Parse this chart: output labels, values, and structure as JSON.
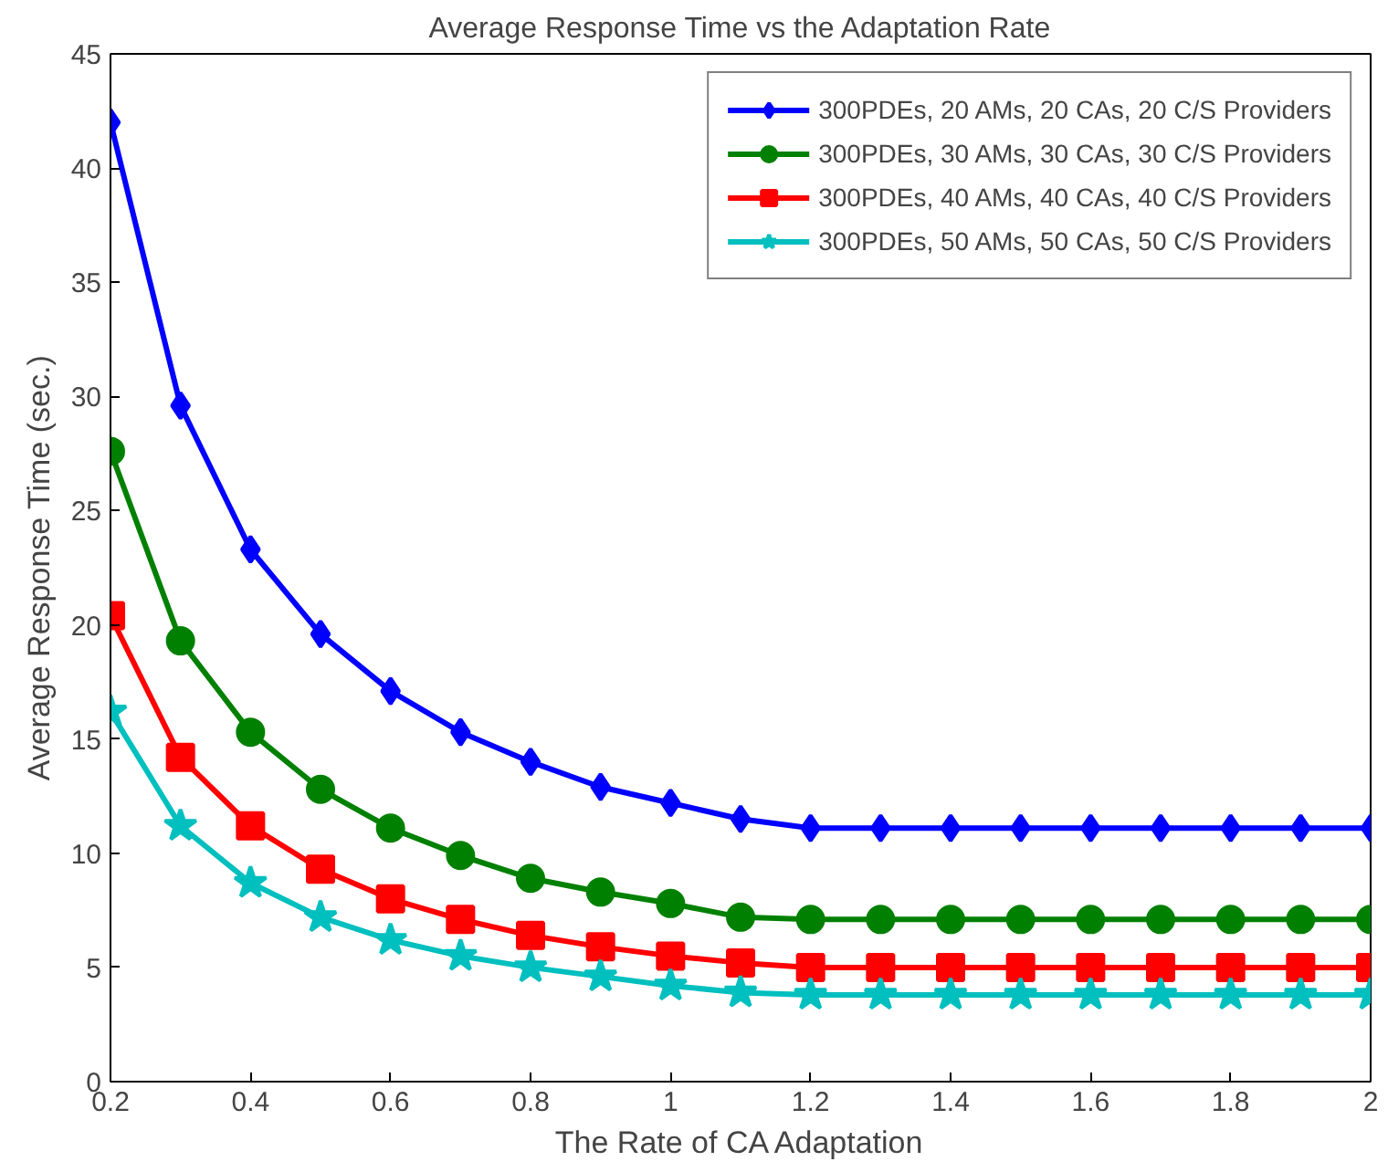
{
  "chart_data": {
    "type": "line",
    "title": "Average Response Time vs the Adaptation Rate",
    "xlabel": "The Rate of CA Adaptation",
    "ylabel": "Average Response Time (sec.)",
    "x": [
      0.2,
      0.3,
      0.4,
      0.5,
      0.6,
      0.7,
      0.8,
      0.9,
      1.0,
      1.1,
      1.2,
      1.3,
      1.4,
      1.5,
      1.6,
      1.7,
      1.8,
      1.9,
      2.0
    ],
    "series": [
      {
        "name": "300PDEs, 20 AMs, 20 CAs, 20 C/S Providers",
        "color": "#0000ff",
        "marker": "diamond",
        "values": [
          42,
          29.6,
          23.3,
          19.6,
          17.1,
          15.3,
          14,
          12.9,
          12.2,
          11.5,
          11.1,
          11.1,
          11.1,
          11.1,
          11.1,
          11.1,
          11.1,
          11.1,
          11.1
        ]
      },
      {
        "name": "300PDEs, 30 AMs, 30 CAs, 30 C/S Providers",
        "color": "#008000",
        "marker": "circle",
        "values": [
          27.6,
          19.3,
          15.3,
          12.8,
          11.1,
          9.9,
          8.9,
          8.3,
          7.8,
          7.2,
          7.1,
          7.1,
          7.1,
          7.1,
          7.1,
          7.1,
          7.1,
          7.1,
          7.1
        ]
      },
      {
        "name": "300PDEs, 40 AMs, 40 CAs, 40 C/S Providers",
        "color": "#ff0000",
        "marker": "square",
        "values": [
          20.4,
          14.2,
          11.2,
          9.3,
          8.0,
          7.1,
          6.4,
          5.9,
          5.5,
          5.2,
          5.0,
          5.0,
          5.0,
          5.0,
          5.0,
          5.0,
          5.0,
          5.0,
          5.0
        ]
      },
      {
        "name": "300PDEs, 50 AMs, 50 CAs, 50 C/S Providers",
        "color": "#00bfbf",
        "marker": "star",
        "values": [
          16.2,
          11.2,
          8.7,
          7.2,
          6.2,
          5.5,
          5.0,
          4.6,
          4.2,
          3.9,
          3.8,
          3.8,
          3.8,
          3.8,
          3.8,
          3.8,
          3.8,
          3.8,
          3.8
        ]
      }
    ],
    "xlim": [
      0.2,
      2
    ],
    "ylim": [
      0,
      45
    ],
    "xticks": [
      0.2,
      0.4,
      0.6,
      0.8,
      {
        "value": 1,
        "label": "1"
      },
      1.2,
      1.4,
      1.6,
      1.8,
      {
        "value": 2,
        "label": "2"
      }
    ],
    "yticks": [
      0,
      5,
      10,
      15,
      20,
      25,
      30,
      35,
      40,
      45
    ],
    "grid": false,
    "legend": "top right",
    "line_style": "solid"
  }
}
